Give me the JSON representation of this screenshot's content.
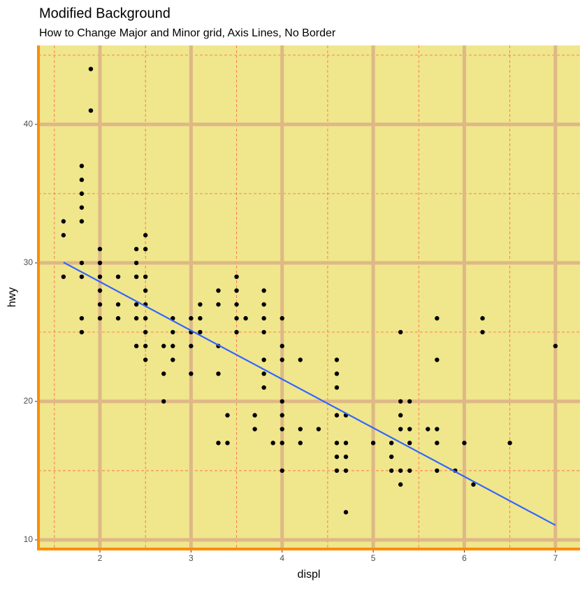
{
  "chart_data": {
    "type": "scatter",
    "title": "Modified Background",
    "subtitle": "How to Change Major and Minor grid, Axis Lines, No Border",
    "x_label": "displ",
    "y_label": "hwy",
    "xlim": [
      1.325,
      7.27
    ],
    "ylim": [
      9.34,
      45.7
    ],
    "xticks": [
      2,
      3,
      4,
      5,
      6,
      7
    ],
    "yticks": [
      10,
      20,
      30,
      40
    ],
    "xminor": [
      1.5,
      2.5,
      3.5,
      4.5,
      5.5,
      6.5
    ],
    "yminor": [
      15,
      25,
      35,
      45
    ],
    "panel_color": "#f0e68c",
    "major_grid_color": "#deb887",
    "minor_grid_color": "#ff6347",
    "axis_line_color": "#ff8c00",
    "color": "#000000",
    "x": [
      1.6,
      1.6,
      1.6,
      1.8,
      1.8,
      1.8,
      1.8,
      1.8,
      1.8,
      1.8,
      1.8,
      1.8,
      1.9,
      1.9,
      2,
      2,
      2,
      2,
      2,
      2,
      2.2,
      2.2,
      2.2,
      2.4,
      2.4,
      2.4,
      2.4,
      2.4,
      2.4,
      2.5,
      2.5,
      2.5,
      2.5,
      2.5,
      2.5,
      2.5,
      2.5,
      2.5,
      2.7,
      2.7,
      2.7,
      2.8,
      2.8,
      2.8,
      2.8,
      3,
      3,
      3,
      3,
      3.1,
      3.1,
      3.1,
      3.3,
      3.3,
      3.3,
      3.3,
      3.3,
      3.4,
      3.4,
      3.5,
      3.5,
      3.5,
      3.5,
      3.5,
      3.6,
      3.7,
      3.7,
      3.8,
      3.8,
      3.8,
      3.8,
      3.8,
      3.8,
      3.8,
      3.9,
      4,
      4,
      4,
      4,
      4,
      4,
      4,
      4,
      4.2,
      4.2,
      4.2,
      4.4,
      4.6,
      4.6,
      4.6,
      4.6,
      4.6,
      4.6,
      4.6,
      4.7,
      4.7,
      4.7,
      4.7,
      4.7,
      5,
      5.2,
      5.2,
      5.2,
      5.3,
      5.3,
      5.3,
      5.3,
      5.3,
      5.3,
      5.4,
      5.4,
      5.4,
      5.4,
      5.6,
      5.7,
      5.7,
      5.7,
      5.7,
      5.7,
      5.9,
      6,
      6.1,
      6.2,
      6.2,
      6.5,
      7
    ],
    "y": [
      33,
      32,
      29,
      37,
      36,
      35,
      34,
      33,
      30,
      29,
      26,
      25,
      44,
      41,
      31,
      30,
      29,
      28,
      27,
      26,
      29,
      27,
      26,
      31,
      30,
      29,
      27,
      26,
      24,
      32,
      31,
      29,
      28,
      27,
      26,
      25,
      24,
      23,
      24,
      22,
      20,
      26,
      25,
      24,
      23,
      26,
      25,
      24,
      22,
      27,
      26,
      25,
      28,
      27,
      24,
      22,
      17,
      19,
      17,
      29,
      28,
      27,
      26,
      25,
      26,
      19,
      18,
      28,
      27,
      26,
      25,
      23,
      22,
      21,
      17,
      26,
      24,
      23,
      20,
      19,
      18,
      17,
      15,
      23,
      18,
      17,
      18,
      23,
      22,
      21,
      19,
      17,
      16,
      15,
      19,
      17,
      16,
      15,
      12,
      17,
      17,
      16,
      15,
      25,
      20,
      19,
      18,
      15,
      14,
      20,
      18,
      17,
      15,
      18,
      26,
      23,
      18,
      17,
      15,
      15,
      17,
      14,
      26,
      25,
      17,
      24
    ],
    "trend": {
      "x": [
        1.6,
        7
      ],
      "y": [
        30.04,
        11.06
      ],
      "color": "#3366ff"
    }
  }
}
